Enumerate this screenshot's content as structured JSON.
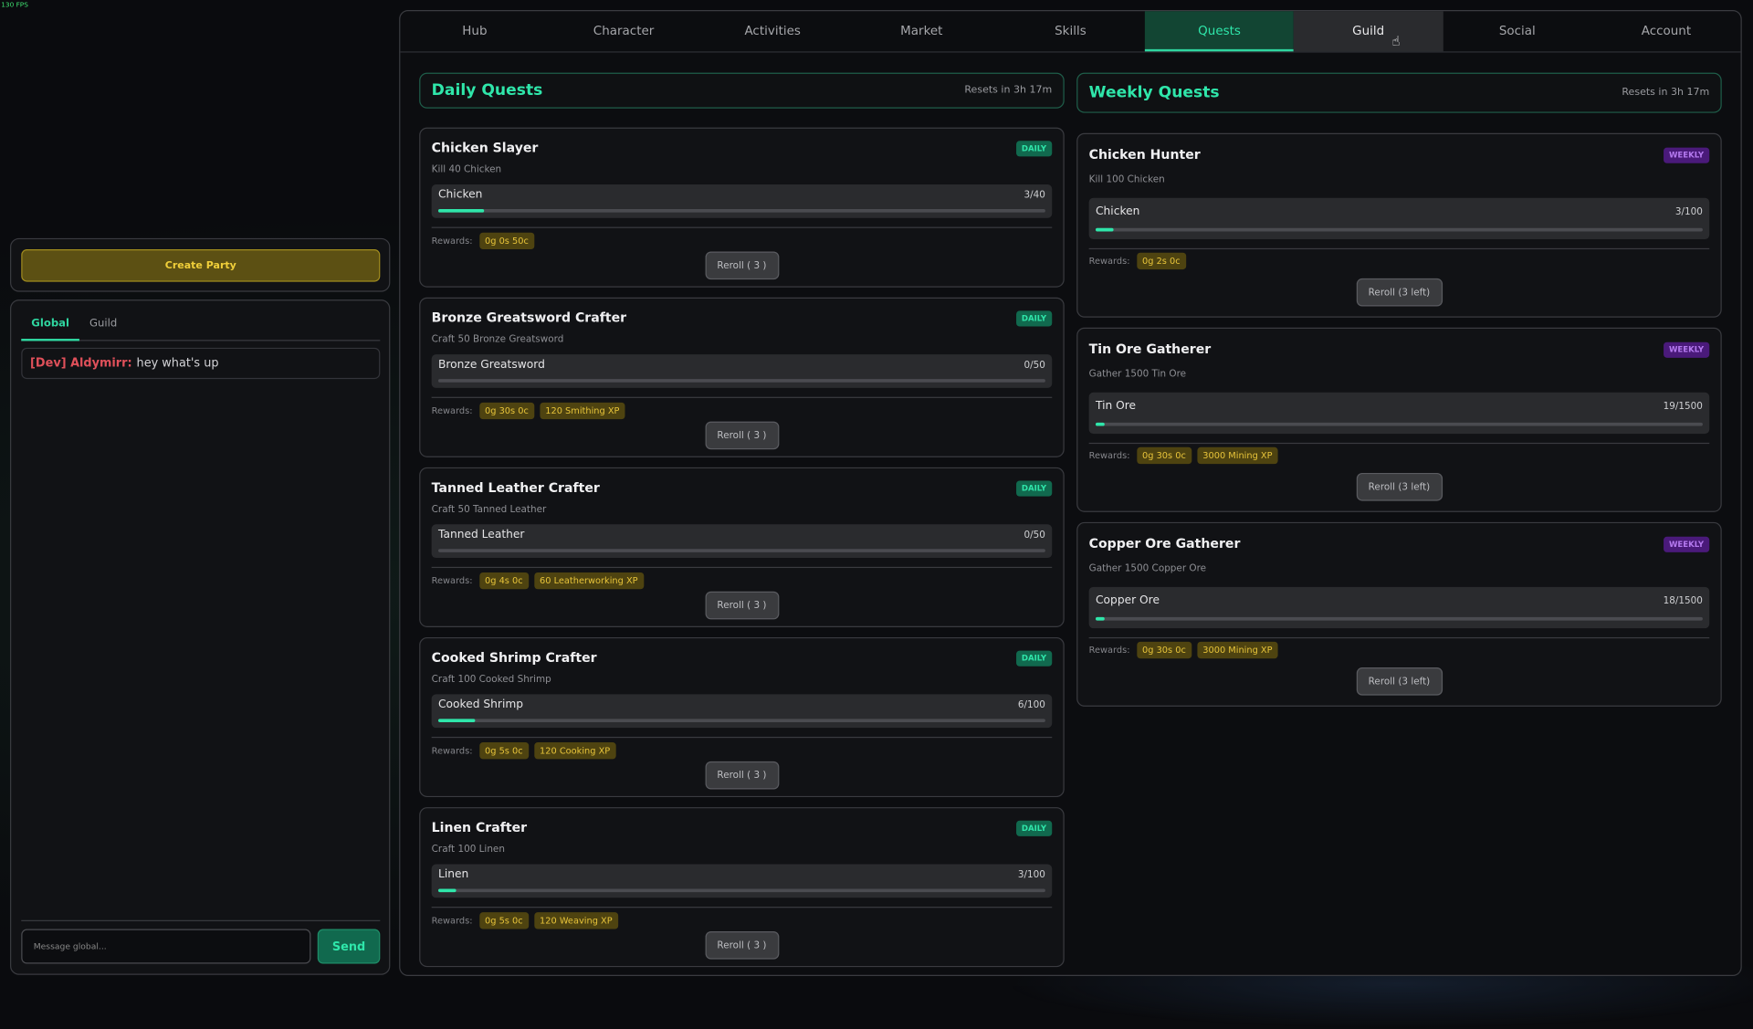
{
  "fps": "130 FPS",
  "party": {
    "create_label": "Create Party"
  },
  "chat": {
    "tabs": [
      {
        "label": "Global",
        "active": true
      },
      {
        "label": "Guild",
        "active": false
      }
    ],
    "messages": [
      {
        "author": "[Dev] Aldymirr:",
        "text": "hey what's up"
      }
    ],
    "input_placeholder": "Message global...",
    "send_label": "Send"
  },
  "nav": {
    "tabs": [
      "Hub",
      "Character",
      "Activities",
      "Market",
      "Skills",
      "Quests",
      "Guild",
      "Social",
      "Account"
    ],
    "active": "Quests",
    "hovered": "Guild"
  },
  "colors": {
    "accent": "#2fe6aa",
    "reward": "#e8c43a",
    "weekly": "#b57af0"
  },
  "daily": {
    "title": "Daily Quests",
    "resets": "Resets in 3h 17m",
    "rewards_label": "Rewards:",
    "quests": [
      {
        "title": "Chicken Slayer",
        "badge": "DAILY",
        "desc": "Kill 40 Chicken",
        "item": "Chicken",
        "count": "3/40",
        "progress": 0.075,
        "rewards": [
          "0g 0s 50c"
        ],
        "reroll": "Reroll ( 3 )"
      },
      {
        "title": "Bronze Greatsword Crafter",
        "badge": "DAILY",
        "desc": "Craft 50 Bronze Greatsword",
        "item": "Bronze Greatsword",
        "count": "0/50",
        "progress": 0,
        "rewards": [
          "0g 30s 0c",
          "120 Smithing XP"
        ],
        "reroll": "Reroll ( 3 )"
      },
      {
        "title": "Tanned Leather Crafter",
        "badge": "DAILY",
        "desc": "Craft 50 Tanned Leather",
        "item": "Tanned Leather",
        "count": "0/50",
        "progress": 0,
        "rewards": [
          "0g 4s 0c",
          "60 Leatherworking XP"
        ],
        "reroll": "Reroll ( 3 )"
      },
      {
        "title": "Cooked Shrimp Crafter",
        "badge": "DAILY",
        "desc": "Craft 100 Cooked Shrimp",
        "item": "Cooked Shrimp",
        "count": "6/100",
        "progress": 0.06,
        "rewards": [
          "0g 5s 0c",
          "120 Cooking XP"
        ],
        "reroll": "Reroll ( 3 )"
      },
      {
        "title": "Linen Crafter",
        "badge": "DAILY",
        "desc": "Craft 100 Linen",
        "item": "Linen",
        "count": "3/100",
        "progress": 0.03,
        "rewards": [
          "0g 5s 0c",
          "120 Weaving XP"
        ],
        "reroll": "Reroll ( 3 )"
      }
    ]
  },
  "weekly": {
    "title": "Weekly Quests",
    "resets": "Resets in 3h 17m",
    "rewards_label": "Rewards:",
    "quests": [
      {
        "title": "Chicken Hunter",
        "badge": "WEEKLY",
        "desc": "Kill 100 Chicken",
        "item": "Chicken",
        "count": "3/100",
        "progress": 0.03,
        "rewards": [
          "0g 2s 0c"
        ],
        "reroll": "Reroll (3 left)"
      },
      {
        "title": "Tin Ore Gatherer",
        "badge": "WEEKLY",
        "desc": "Gather 1500 Tin Ore",
        "item": "Tin Ore",
        "count": "19/1500",
        "progress": 0.0127,
        "rewards": [
          "0g 30s 0c",
          "3000 Mining XP"
        ],
        "reroll": "Reroll (3 left)"
      },
      {
        "title": "Copper Ore Gatherer",
        "badge": "WEEKLY",
        "desc": "Gather 1500 Copper Ore",
        "item": "Copper Ore",
        "count": "18/1500",
        "progress": 0.012,
        "rewards": [
          "0g 30s 0c",
          "3000 Mining XP"
        ],
        "reroll": "Reroll (3 left)"
      }
    ]
  }
}
